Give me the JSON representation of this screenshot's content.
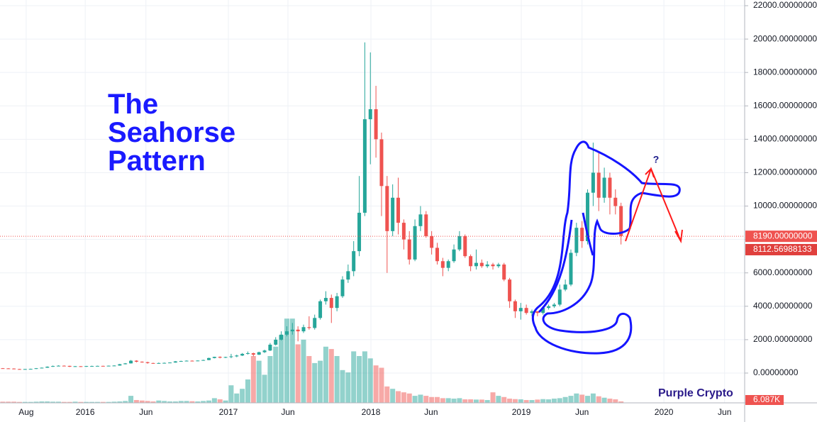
{
  "chart_data": {
    "type": "candlestick",
    "title_lines": [
      "The",
      "Seahorse",
      "Pattern"
    ],
    "annotation": "?",
    "watermark": "Purple Crypto",
    "x": [
      null,
      null,
      null,
      null,
      null,
      null,
      null,
      null,
      null,
      null,
      null,
      null,
      null,
      null,
      null,
      null,
      null,
      null,
      null,
      null,
      null,
      null,
      null,
      null,
      null,
      null,
      null,
      null,
      null,
      null,
      null,
      null,
      null,
      null,
      null,
      null,
      null,
      null,
      null,
      null,
      null,
      null,
      null,
      null,
      null,
      null,
      null,
      null,
      null,
      null,
      null,
      null,
      null,
      null,
      null,
      null,
      null,
      null,
      null,
      null,
      null,
      null,
      null,
      null,
      null,
      null,
      null,
      null,
      null,
      null,
      null,
      null,
      null,
      null,
      null,
      null,
      null,
      null,
      null,
      null,
      null,
      null,
      null,
      null,
      null,
      null,
      null,
      null,
      null,
      null,
      null,
      null,
      null,
      null,
      null,
      null,
      null,
      null,
      null,
      null,
      null,
      null,
      null,
      null,
      null,
      null,
      null,
      null,
      null,
      null,
      null,
      null
    ],
    "open": [
      290,
      280,
      270,
      240,
      230,
      240,
      250,
      290,
      320,
      380,
      420,
      440,
      430,
      380,
      410,
      380,
      420,
      420,
      430,
      420,
      440,
      450,
      530,
      580,
      740,
      680,
      650,
      600,
      580,
      600,
      610,
      630,
      700,
      720,
      740,
      730,
      750,
      780,
      900,
      970,
      920,
      960,
      1000,
      1050,
      1150,
      1190,
      1100,
      1250,
      1350,
      1700,
      2000,
      2300,
      2500,
      2600,
      2500,
      2750,
      2700,
      3300,
      4300,
      4500,
      3900,
      4600,
      5600,
      6100,
      7300,
      9600,
      15200,
      15800,
      14000,
      11200,
      8500,
      10500,
      9000,
      8000,
      6800,
      8800,
      9500,
      8200,
      7500,
      6700,
      6300,
      6700,
      7400,
      8200,
      7000,
      6400,
      6600,
      6400,
      6500,
      6400,
      6500,
      5600,
      4300,
      3700,
      3900,
      3600,
      3700,
      3600,
      3900,
      4000,
      4100,
      5000,
      5300,
      7200,
      8700,
      7900,
      10800,
      12000,
      10500,
      11700,
      10500,
      10000
    ],
    "high": [
      300,
      295,
      285,
      255,
      250,
      265,
      300,
      335,
      400,
      450,
      465,
      460,
      440,
      425,
      420,
      430,
      440,
      440,
      440,
      450,
      470,
      550,
      600,
      780,
      770,
      700,
      680,
      620,
      630,
      630,
      640,
      720,
      740,
      760,
      760,
      760,
      800,
      920,
      980,
      1000,
      980,
      1150,
      1100,
      1200,
      1290,
      1220,
      1280,
      1400,
      1800,
      2150,
      2500,
      2800,
      3000,
      2800,
      2900,
      3400,
      3500,
      4400,
      4900,
      4700,
      4800,
      5800,
      6500,
      7900,
      11800,
      19800,
      19200,
      17200,
      14400,
      11800,
      11300,
      11700,
      9200,
      8500,
      9200,
      10000,
      9700,
      8500,
      7800,
      6900,
      6800,
      7700,
      8500,
      8300,
      7100,
      7400,
      6800,
      6700,
      6600,
      6600,
      6600,
      5700,
      4400,
      4200,
      4100,
      3800,
      3700,
      4000,
      4100,
      4200,
      5300,
      5600,
      7400,
      9000,
      9100,
      11000,
      13800,
      13200,
      12300,
      12000,
      11000,
      10200
    ],
    "low": [
      265,
      255,
      225,
      210,
      220,
      230,
      240,
      280,
      310,
      370,
      400,
      415,
      360,
      370,
      360,
      370,
      400,
      405,
      400,
      410,
      430,
      440,
      520,
      570,
      640,
      620,
      560,
      560,
      570,
      590,
      600,
      620,
      690,
      700,
      700,
      710,
      740,
      770,
      880,
      880,
      900,
      890,
      950,
      1020,
      1110,
      1000,
      1080,
      1200,
      1320,
      1650,
      1950,
      2200,
      2300,
      1900,
      2400,
      2600,
      2600,
      3200,
      4100,
      3000,
      3700,
      4500,
      5400,
      5800,
      7000,
      9400,
      12500,
      12900,
      9400,
      6000,
      8200,
      8300,
      7400,
      6500,
      6700,
      8500,
      8100,
      7100,
      6500,
      5800,
      6100,
      6600,
      7300,
      6900,
      6100,
      6200,
      6300,
      6300,
      6200,
      6300,
      5500,
      3900,
      3300,
      3200,
      3500,
      3400,
      3400,
      3500,
      3800,
      3900,
      4000,
      4900,
      5200,
      7000,
      7500,
      7700,
      10000,
      9700,
      10200,
      9500,
      9500,
      7700
    ],
    "close": [
      280,
      270,
      240,
      230,
      240,
      250,
      290,
      320,
      380,
      420,
      440,
      430,
      380,
      410,
      380,
      420,
      420,
      430,
      420,
      440,
      450,
      530,
      580,
      740,
      680,
      650,
      600,
      580,
      600,
      610,
      630,
      700,
      720,
      740,
      730,
      750,
      780,
      900,
      970,
      920,
      960,
      1000,
      1050,
      1150,
      1190,
      1100,
      1250,
      1350,
      1700,
      2000,
      2300,
      2500,
      2600,
      2500,
      2750,
      2700,
      3300,
      4300,
      4500,
      3900,
      4600,
      5600,
      6100,
      7300,
      9600,
      15200,
      15800,
      14000,
      11200,
      8500,
      10500,
      9000,
      8000,
      6800,
      8800,
      9500,
      8200,
      7500,
      6700,
      6300,
      6700,
      7400,
      8200,
      7000,
      6400,
      6600,
      6400,
      6500,
      6400,
      6500,
      5600,
      4300,
      3700,
      3900,
      3600,
      3700,
      3600,
      3900,
      4000,
      4100,
      5000,
      5300,
      7200,
      8700,
      7900,
      10800,
      12000,
      10500,
      11700,
      10500,
      10000,
      8200
    ],
    "volume": [
      5,
      5,
      5,
      4,
      4,
      4,
      5,
      6,
      6,
      5,
      5,
      4,
      4,
      5,
      4,
      4,
      4,
      4,
      4,
      4,
      5,
      6,
      8,
      30,
      12,
      10,
      8,
      6,
      10,
      8,
      6,
      6,
      8,
      8,
      7,
      6,
      8,
      10,
      20,
      15,
      10,
      75,
      40,
      60,
      100,
      200,
      180,
      120,
      200,
      240,
      290,
      360,
      360,
      250,
      270,
      200,
      170,
      180,
      240,
      230,
      200,
      140,
      130,
      220,
      200,
      220,
      190,
      160,
      150,
      70,
      60,
      50,
      45,
      40,
      30,
      35,
      30,
      25,
      25,
      20,
      20,
      18,
      20,
      15,
      15,
      14,
      14,
      12,
      45,
      30,
      25,
      18,
      16,
      15,
      12,
      12,
      14,
      16,
      15,
      18,
      20,
      25,
      30,
      40,
      35,
      30,
      40,
      28,
      22,
      18,
      15,
      6.087
    ],
    "volume_label": {
      "value": 6.087,
      "label": "6.087K"
    },
    "last_price": {
      "value": 8190,
      "label": "8190.00000000"
    },
    "price_label": {
      "value": 8112.56988133,
      "label": "8112.56988133"
    },
    "up_color": "#26a69a",
    "down_color": "#ef5350",
    "xlim": [
      -0.5,
      133.2
    ],
    "xticks": [
      {
        "value": 4.2,
        "label": "Aug"
      },
      {
        "value": 14.8,
        "label": "2016"
      },
      {
        "value": 25.7,
        "label": "Jun"
      },
      {
        "value": 40.5,
        "label": "2017"
      },
      {
        "value": 51.2,
        "label": "Jun"
      },
      {
        "value": 66.1,
        "label": "2018"
      },
      {
        "value": 76.9,
        "label": "Jun"
      },
      {
        "value": 93.1,
        "label": "2019"
      },
      {
        "value": 104,
        "label": "Jun"
      },
      {
        "value": 118.7,
        "label": "2020"
      },
      {
        "value": 129.6,
        "label": "Jun"
      }
    ],
    "ylim": [
      -1784,
      22340
    ],
    "yticks": [
      {
        "value": 0,
        "label": "0.00000000"
      },
      {
        "value": 2000,
        "label": "2000.00000000"
      },
      {
        "value": 4000,
        "label": "4000.00000000"
      },
      {
        "value": 6000,
        "label": "6000.00000000"
      },
      {
        "value": 8000,
        "label": "8000.00000000"
      },
      {
        "value": 10000,
        "label": "10000.00000000"
      },
      {
        "value": 12000,
        "label": "12000.00000000"
      },
      {
        "value": 14000,
        "label": "14000.00000000"
      },
      {
        "value": 16000,
        "label": "16000.00000000"
      },
      {
        "value": 18000,
        "label": "18000.00000000"
      },
      {
        "value": 20000,
        "label": "20000.00000000"
      },
      {
        "value": 22000,
        "label": "22000.00000000"
      }
    ],
    "grid": true
  }
}
